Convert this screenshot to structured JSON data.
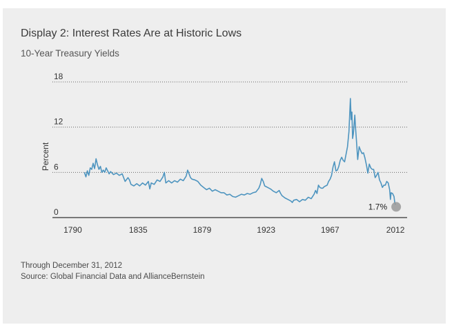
{
  "header": {
    "title": "Display 2: Interest Rates Are at Historic Lows",
    "subtitle": "10-Year Treasury Yields"
  },
  "footer": {
    "through": "Through December 31, 2012",
    "source": "Source: Global Financial Data and AllianceBernstein"
  },
  "colors": {
    "panel": "#eeeeee",
    "line": "#4d94bf",
    "marker": "#999999",
    "axis": "#333333",
    "grid": "#666666"
  },
  "chart_data": {
    "type": "line",
    "title": "10-Year Treasury Yields",
    "ylabel": "Percent",
    "xlabel": "",
    "xlim": [
      1776,
      2020
    ],
    "ylim": [
      0,
      18
    ],
    "x_ticks": [
      1790,
      1835,
      1879,
      1923,
      1967,
      2012
    ],
    "y_ticks": [
      0,
      6,
      12,
      18
    ],
    "y_tick_labels": [
      "0",
      "6",
      "12",
      "18"
    ],
    "grid": "horizontal dotted",
    "annotation": {
      "label": "1.7%",
      "x": 2012,
      "y": 1.7
    },
    "series": [
      {
        "values": [
          [
            1798,
            6.0
          ],
          [
            1799,
            5.4
          ],
          [
            1800,
            6.2
          ],
          [
            1801,
            5.6
          ],
          [
            1802,
            6.6
          ],
          [
            1803,
            6.4
          ],
          [
            1804,
            7.2
          ],
          [
            1805,
            6.5
          ],
          [
            1806,
            7.8
          ],
          [
            1807,
            7.0
          ],
          [
            1808,
            6.4
          ],
          [
            1809,
            6.8
          ],
          [
            1810,
            6.0
          ],
          [
            1811,
            6.3
          ],
          [
            1812,
            6.0
          ],
          [
            1813,
            6.6
          ],
          [
            1814,
            6.2
          ],
          [
            1815,
            5.8
          ],
          [
            1816,
            6.1
          ],
          [
            1818,
            5.7
          ],
          [
            1820,
            5.9
          ],
          [
            1822,
            5.6
          ],
          [
            1824,
            5.8
          ],
          [
            1826,
            4.8
          ],
          [
            1828,
            5.3
          ],
          [
            1829,
            5.0
          ],
          [
            1830,
            4.4
          ],
          [
            1832,
            4.2
          ],
          [
            1834,
            4.5
          ],
          [
            1836,
            4.2
          ],
          [
            1838,
            4.6
          ],
          [
            1840,
            4.3
          ],
          [
            1842,
            4.8
          ],
          [
            1843,
            3.8
          ],
          [
            1844,
            4.6
          ],
          [
            1846,
            4.4
          ],
          [
            1848,
            5.0
          ],
          [
            1850,
            4.8
          ],
          [
            1852,
            5.4
          ],
          [
            1853,
            6.0
          ],
          [
            1854,
            4.6
          ],
          [
            1856,
            4.9
          ],
          [
            1858,
            4.6
          ],
          [
            1860,
            4.9
          ],
          [
            1862,
            4.7
          ],
          [
            1864,
            5.1
          ],
          [
            1866,
            4.9
          ],
          [
            1868,
            5.5
          ],
          [
            1869,
            6.3
          ],
          [
            1870,
            5.8
          ],
          [
            1871,
            5.3
          ],
          [
            1872,
            5.1
          ],
          [
            1874,
            5.0
          ],
          [
            1876,
            4.8
          ],
          [
            1878,
            4.3
          ],
          [
            1880,
            4.0
          ],
          [
            1882,
            3.7
          ],
          [
            1884,
            3.9
          ],
          [
            1886,
            3.5
          ],
          [
            1888,
            3.7
          ],
          [
            1890,
            3.5
          ],
          [
            1892,
            3.3
          ],
          [
            1894,
            3.3
          ],
          [
            1896,
            3.0
          ],
          [
            1898,
            3.1
          ],
          [
            1900,
            2.8
          ],
          [
            1902,
            2.7
          ],
          [
            1904,
            2.9
          ],
          [
            1906,
            3.1
          ],
          [
            1908,
            3.0
          ],
          [
            1910,
            3.2
          ],
          [
            1912,
            3.1
          ],
          [
            1914,
            3.3
          ],
          [
            1916,
            3.4
          ],
          [
            1918,
            3.9
          ],
          [
            1919,
            4.4
          ],
          [
            1920,
            5.2
          ],
          [
            1921,
            4.8
          ],
          [
            1922,
            4.2
          ],
          [
            1924,
            4.0
          ],
          [
            1926,
            3.8
          ],
          [
            1928,
            3.5
          ],
          [
            1930,
            3.3
          ],
          [
            1932,
            3.6
          ],
          [
            1933,
            3.2
          ],
          [
            1934,
            2.9
          ],
          [
            1936,
            2.6
          ],
          [
            1938,
            2.4
          ],
          [
            1940,
            2.2
          ],
          [
            1941,
            2.0
          ],
          [
            1942,
            2.3
          ],
          [
            1944,
            2.4
          ],
          [
            1946,
            2.1
          ],
          [
            1948,
            2.4
          ],
          [
            1950,
            2.3
          ],
          [
            1952,
            2.7
          ],
          [
            1954,
            2.5
          ],
          [
            1956,
            3.1
          ],
          [
            1957,
            3.6
          ],
          [
            1958,
            3.2
          ],
          [
            1959,
            4.3
          ],
          [
            1960,
            4.0
          ],
          [
            1961,
            3.9
          ],
          [
            1962,
            3.9
          ],
          [
            1963,
            4.1
          ],
          [
            1964,
            4.2
          ],
          [
            1965,
            4.3
          ],
          [
            1966,
            4.8
          ],
          [
            1967,
            5.1
          ],
          [
            1968,
            5.6
          ],
          [
            1969,
            6.7
          ],
          [
            1970,
            7.4
          ],
          [
            1971,
            6.2
          ],
          [
            1972,
            6.3
          ],
          [
            1973,
            6.8
          ],
          [
            1974,
            7.6
          ],
          [
            1975,
            8.0
          ],
          [
            1976,
            7.6
          ],
          [
            1977,
            7.4
          ],
          [
            1978,
            8.4
          ],
          [
            1979,
            9.4
          ],
          [
            1980,
            11.4
          ],
          [
            1981,
            15.8
          ],
          [
            1981.5,
            13.0
          ],
          [
            1982,
            14.0
          ],
          [
            1982.5,
            10.5
          ],
          [
            1983,
            11.1
          ],
          [
            1984,
            13.6
          ],
          [
            1984.5,
            12.0
          ],
          [
            1985,
            10.6
          ],
          [
            1986,
            7.7
          ],
          [
            1987,
            9.4
          ],
          [
            1988,
            8.9
          ],
          [
            1989,
            8.5
          ],
          [
            1990,
            8.6
          ],
          [
            1991,
            7.9
          ],
          [
            1992,
            7.0
          ],
          [
            1993,
            5.9
          ],
          [
            1994,
            7.1
          ],
          [
            1995,
            6.6
          ],
          [
            1996,
            6.4
          ],
          [
            1997,
            6.4
          ],
          [
            1998,
            5.3
          ],
          [
            1999,
            5.6
          ],
          [
            2000,
            6.0
          ],
          [
            2001,
            5.0
          ],
          [
            2002,
            4.6
          ],
          [
            2003,
            4.0
          ],
          [
            2004,
            4.3
          ],
          [
            2005,
            4.3
          ],
          [
            2006,
            4.8
          ],
          [
            2007,
            4.6
          ],
          [
            2008,
            3.7
          ],
          [
            2008.5,
            2.4
          ],
          [
            2009,
            3.3
          ],
          [
            2010,
            3.2
          ],
          [
            2011,
            2.8
          ],
          [
            2011.5,
            2.0
          ],
          [
            2012,
            1.7
          ]
        ]
      }
    ]
  }
}
